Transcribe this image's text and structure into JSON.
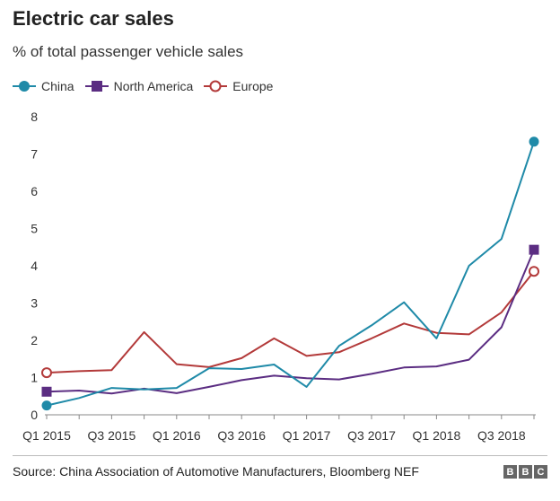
{
  "header": {
    "title": "Electric car sales",
    "subtitle": "% of total passenger vehicle sales"
  },
  "footer": {
    "source": "Source: China Association of Automotive Manufacturers, Bloomberg NEF",
    "brand_letters": [
      "B",
      "B",
      "C"
    ]
  },
  "chart_data": {
    "type": "line",
    "title": "Electric car sales",
    "subtitle": "% of total passenger vehicle sales",
    "xlabel": "",
    "ylabel": "",
    "categories": [
      "Q1 2015",
      "Q2 2015",
      "Q3 2015",
      "Q4 2015",
      "Q1 2016",
      "Q2 2016",
      "Q3 2016",
      "Q4 2016",
      "Q1 2017",
      "Q2 2017",
      "Q3 2017",
      "Q4 2017",
      "Q1 2018",
      "Q2 2018",
      "Q3 2018",
      "Q4 2018"
    ],
    "tick_labels": [
      "Q1 2015",
      "Q3 2015",
      "Q1 2016",
      "Q3 2016",
      "Q1 2017",
      "Q3 2017",
      "Q1 2018",
      "Q3 2018"
    ],
    "tick_indices": [
      0,
      2,
      4,
      6,
      8,
      10,
      12,
      14
    ],
    "ylim": [
      0,
      8
    ],
    "yticks": [
      0,
      1,
      2,
      3,
      4,
      5,
      6,
      7,
      8
    ],
    "grid": false,
    "legend_position": "top-left",
    "series": [
      {
        "name": "China",
        "color": "#1f8aa8",
        "marker": "filled-circle",
        "values": [
          0.25,
          0.45,
          0.72,
          0.68,
          0.72,
          1.25,
          1.23,
          1.35,
          0.75,
          1.85,
          2.4,
          3.02,
          2.05,
          4.0,
          4.72,
          7.33
        ]
      },
      {
        "name": "North America",
        "color": "#5b2d82",
        "marker": "filled-square",
        "values": [
          0.62,
          0.65,
          0.57,
          0.7,
          0.58,
          0.75,
          0.93,
          1.05,
          0.98,
          0.95,
          1.1,
          1.27,
          1.3,
          1.48,
          2.35,
          4.43
        ]
      },
      {
        "name": "Europe",
        "color": "#b33a3a",
        "marker": "hollow-circle",
        "values": [
          1.13,
          1.17,
          1.2,
          2.22,
          1.36,
          1.28,
          1.52,
          2.05,
          1.58,
          1.68,
          2.05,
          2.45,
          2.2,
          2.16,
          2.75,
          3.85
        ]
      }
    ]
  }
}
